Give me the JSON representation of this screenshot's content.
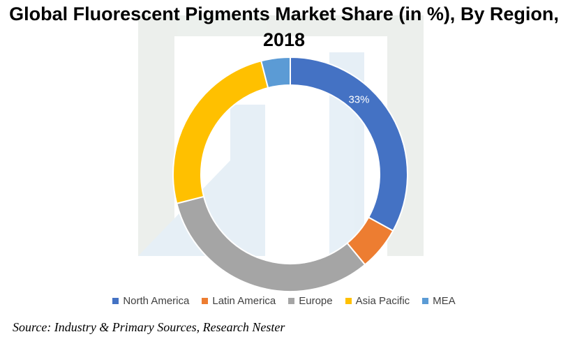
{
  "title_line1": "Global Fluorescent Pigments Market Share (in %), By Region,",
  "title_line2": "2018",
  "source": "Source: Industry & Primary Sources, Research Nester",
  "colors": {
    "north_america": "#4472C4",
    "latin_america": "#ED7D31",
    "europe": "#A5A5A5",
    "asia_pacific": "#FFC000",
    "mea": "#5B9BD5"
  },
  "chart_data": {
    "type": "pie",
    "variant": "donut",
    "title": "Global Fluorescent Pigments Market Share (in %), By Region, 2018",
    "categories": [
      "North America",
      "Latin America",
      "Europe",
      "Asia Pacific",
      "MEA"
    ],
    "values": [
      33,
      6,
      32,
      25,
      4
    ],
    "unit": "%",
    "data_labels": [
      {
        "category": "North America",
        "text": "33%"
      }
    ],
    "legend": "bottom"
  }
}
